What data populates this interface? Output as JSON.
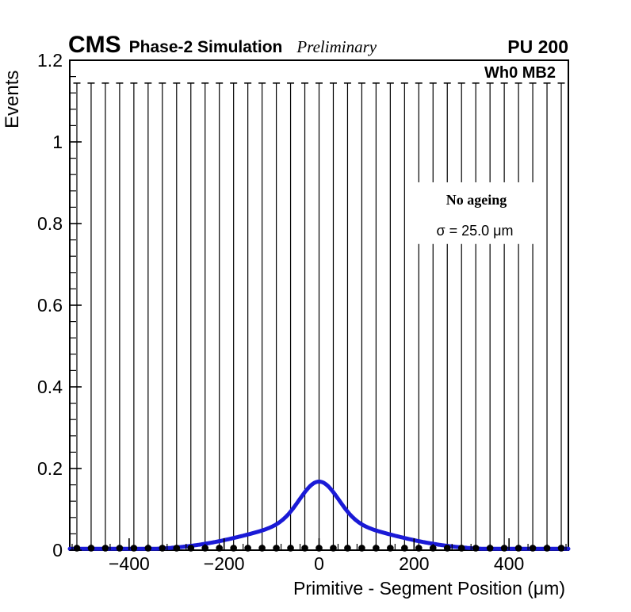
{
  "header": {
    "experiment": "CMS",
    "subtitle": "Phase-2 Simulation",
    "status": "Preliminary",
    "pileup_label": "PU 200"
  },
  "plot": {
    "region_label": "Wh0 MB2",
    "legend": {
      "title": "No ageing",
      "resolution": "σ = 25.0 μm"
    }
  },
  "chart_data": {
    "type": "scatter",
    "title": "",
    "xlabel": "Primitive - Segment Position (μm)",
    "ylabel": "Events",
    "xlim": [
      -525,
      525
    ],
    "ylim": [
      0,
      1.2
    ],
    "grid": false,
    "x_ticks": {
      "major_values": [
        -400,
        -200,
        0,
        200,
        400
      ],
      "major_labels": [
        "−400",
        "−200",
        "0",
        "200",
        "400"
      ],
      "minor_step": 40
    },
    "y_ticks": {
      "major_values": [
        0,
        0.2,
        0.4,
        0.6,
        0.8,
        1,
        1.2
      ],
      "major_labels": [
        "0",
        "0.2",
        "0.4",
        "0.6",
        "0.8",
        "1",
        "1.2"
      ],
      "minor_step": 0.04
    },
    "series": [
      {
        "name": "data-points",
        "type": "points-with-error-bars",
        "marker": "filled-circle",
        "marker_color": "#000000",
        "bin_width_um": 30,
        "bin_centers": [
          -510,
          -480,
          -450,
          -420,
          -390,
          -360,
          -330,
          -300,
          -270,
          -240,
          -210,
          -180,
          -150,
          -120,
          -90,
          -60,
          -30,
          0,
          30,
          60,
          90,
          120,
          150,
          180,
          210,
          240,
          270,
          300,
          330,
          360,
          390,
          420,
          450,
          480,
          510
        ],
        "values": [
          0,
          0,
          0,
          0,
          0,
          0,
          0,
          0,
          0,
          0,
          0,
          0,
          0,
          0,
          0,
          0,
          0,
          0,
          0,
          0,
          0,
          0,
          0,
          0,
          0,
          0,
          0,
          0,
          0,
          0,
          0,
          0,
          0,
          0,
          0
        ],
        "error_top": 1.144
      },
      {
        "name": "fit-curve",
        "type": "curve",
        "color": "#1a1ad6",
        "line_width": 5,
        "model": "sum-of-gaussians",
        "components": [
          {
            "amplitude": 0.1,
            "sigma_um": 40
          },
          {
            "amplitude": 0.068,
            "sigma_um": 140
          }
        ],
        "peak_x": 0,
        "peak_value": 0.168
      }
    ],
    "legend_box": {
      "x_range": [
        196,
        466
      ],
      "y_range": [
        0.75,
        0.901
      ],
      "fill": "#ffffff"
    }
  }
}
